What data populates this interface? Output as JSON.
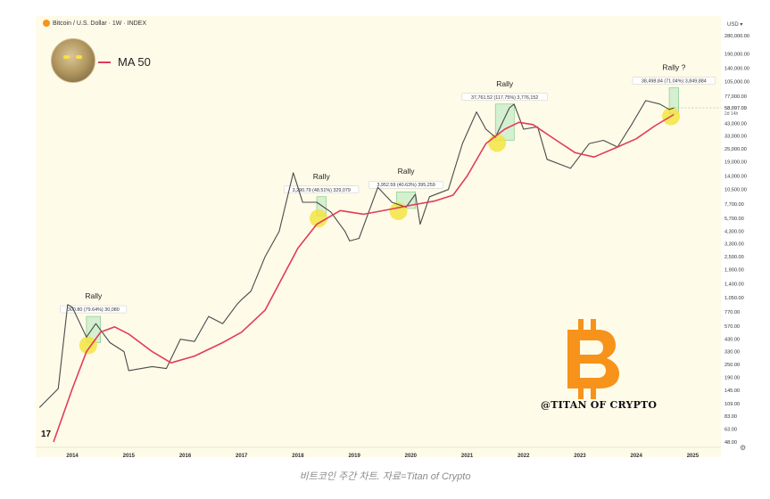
{
  "header": {
    "symbol_title": "Bitcoin / U.S. Dollar · 1W · INDEX",
    "currency": "USD",
    "currency_icon": "chevron-down-icon"
  },
  "legend": {
    "ma_label": "MA 50",
    "ma_color": "#e23b5a"
  },
  "watermark": "@TITAN OF CRYPTO",
  "tv_logo": "17",
  "settings_icon": "gear-icon",
  "caption": "비트코인 주간 차트. 자료=Titan of Crypto",
  "chart_data": {
    "type": "line",
    "scale": "log",
    "x_ticks": [
      "2014",
      "2015",
      "2016",
      "2017",
      "2018",
      "2019",
      "2020",
      "2021",
      "2022",
      "2023",
      "2024",
      "2025"
    ],
    "y_ticks": [
      "280,000.00",
      "190,000.00",
      "140,000.00",
      "105,000.00",
      "77,000.00",
      "43,000.00",
      "33,000.00",
      "25,000.00",
      "19,000.00",
      "14,000.00",
      "10,500.00",
      "7,700.00",
      "5,700.00",
      "4,300.00",
      "3,300.00",
      "2,500.00",
      "1,900.00",
      "1,400.00",
      "1,050.00",
      "770.00",
      "570.00",
      "430.00",
      "330.00",
      "250.00",
      "190.00",
      "145.00",
      "109.00",
      "83.00",
      "63.00",
      "48.00"
    ],
    "current_price": "58,097.09",
    "current_countdown": "2d 14h",
    "ylim": [
      48,
      280000
    ],
    "grid": false,
    "series": [
      {
        "name": "BTC",
        "color": "#4a4a4a",
        "points": [
          [
            "2013-06",
            100
          ],
          [
            "2013-10",
            150
          ],
          [
            "2013-12",
            900
          ],
          [
            "2014-01",
            850
          ],
          [
            "2014-04",
            450
          ],
          [
            "2014-06",
            600
          ],
          [
            "2014-09",
            400
          ],
          [
            "2014-12",
            330
          ],
          [
            "2015-01",
            220
          ],
          [
            "2015-06",
            240
          ],
          [
            "2015-09",
            230
          ],
          [
            "2015-12",
            430
          ],
          [
            "2016-03",
            410
          ],
          [
            "2016-06",
            700
          ],
          [
            "2016-09",
            600
          ],
          [
            "2016-12",
            900
          ],
          [
            "2017-01",
            1000
          ],
          [
            "2017-03",
            1200
          ],
          [
            "2017-06",
            2500
          ],
          [
            "2017-09",
            4300
          ],
          [
            "2017-12",
            15000
          ],
          [
            "2018-01",
            11000
          ],
          [
            "2018-02",
            8000
          ],
          [
            "2018-05",
            8000
          ],
          [
            "2018-08",
            6500
          ],
          [
            "2018-11",
            4300
          ],
          [
            "2018-12",
            3500
          ],
          [
            "2019-02",
            3700
          ],
          [
            "2019-06",
            11000
          ],
          [
            "2019-09",
            8000
          ],
          [
            "2019-12",
            7200
          ],
          [
            "2020-02",
            9500
          ],
          [
            "2020-03",
            5000
          ],
          [
            "2020-05",
            9000
          ],
          [
            "2020-09",
            10500
          ],
          [
            "2020-12",
            28000
          ],
          [
            "2021-03",
            55000
          ],
          [
            "2021-05",
            38000
          ],
          [
            "2021-07",
            32000
          ],
          [
            "2021-10",
            60000
          ],
          [
            "2021-11",
            65000
          ],
          [
            "2022-01",
            38000
          ],
          [
            "2022-04",
            40000
          ],
          [
            "2022-06",
            20000
          ],
          [
            "2022-11",
            16500
          ],
          [
            "2023-03",
            28000
          ],
          [
            "2023-06",
            30000
          ],
          [
            "2023-09",
            26000
          ],
          [
            "2023-12",
            42000
          ],
          [
            "2024-03",
            70000
          ],
          [
            "2024-06",
            65000
          ],
          [
            "2024-08",
            58000
          ],
          [
            "2024-09",
            60000
          ]
        ]
      },
      {
        "name": "MA 50",
        "color": "#e23b5a",
        "points": [
          [
            "2013-09",
            48
          ],
          [
            "2014-01",
            150
          ],
          [
            "2014-04",
            330
          ],
          [
            "2014-07",
            500
          ],
          [
            "2014-10",
            560
          ],
          [
            "2015-01",
            480
          ],
          [
            "2015-06",
            330
          ],
          [
            "2015-10",
            260
          ],
          [
            "2016-03",
            300
          ],
          [
            "2016-09",
            400
          ],
          [
            "2017-01",
            500
          ],
          [
            "2017-06",
            800
          ],
          [
            "2017-10",
            1700
          ],
          [
            "2018-01",
            3000
          ],
          [
            "2018-05",
            5000
          ],
          [
            "2018-10",
            6700
          ],
          [
            "2019-03",
            6200
          ],
          [
            "2019-08",
            6800
          ],
          [
            "2020-01",
            7500
          ],
          [
            "2020-06",
            8200
          ],
          [
            "2020-10",
            9300
          ],
          [
            "2021-01",
            14000
          ],
          [
            "2021-05",
            28000
          ],
          [
            "2021-09",
            38000
          ],
          [
            "2021-12",
            44000
          ],
          [
            "2022-03",
            42000
          ],
          [
            "2022-08",
            30000
          ],
          [
            "2022-12",
            23000
          ],
          [
            "2023-04",
            21000
          ],
          [
            "2023-09",
            26000
          ],
          [
            "2024-01",
            31000
          ],
          [
            "2024-05",
            41000
          ],
          [
            "2024-09",
            52000
          ]
        ]
      }
    ],
    "rallies": [
      {
        "title": "Rally",
        "box_label": "300.80 (79.64%) 30,080",
        "start": "2014-04",
        "end": "2014-07",
        "low": 400,
        "high": 700
      },
      {
        "title": "Rally",
        "box_label": "3,290.79 (48.51%) 329,079",
        "start": "2018-05",
        "end": "2018-07",
        "low": 6000,
        "high": 9000
      },
      {
        "title": "Rally",
        "box_label": "3,952.59 (40.63%) 395,259",
        "start": "2019-10",
        "end": "2020-02",
        "low": 7000,
        "high": 10000
      },
      {
        "title": "Rally",
        "box_label": "37,761.52 (117.75%) 3,776,152",
        "start": "2021-07",
        "end": "2021-11",
        "low": 30000,
        "high": 65000
      },
      {
        "title": "Rally ?",
        "box_label": "38,498.84 (71.04%) 3,849,884",
        "start": "2024-08",
        "end": "2024-10",
        "low": 53000,
        "high": 92000
      }
    ]
  }
}
